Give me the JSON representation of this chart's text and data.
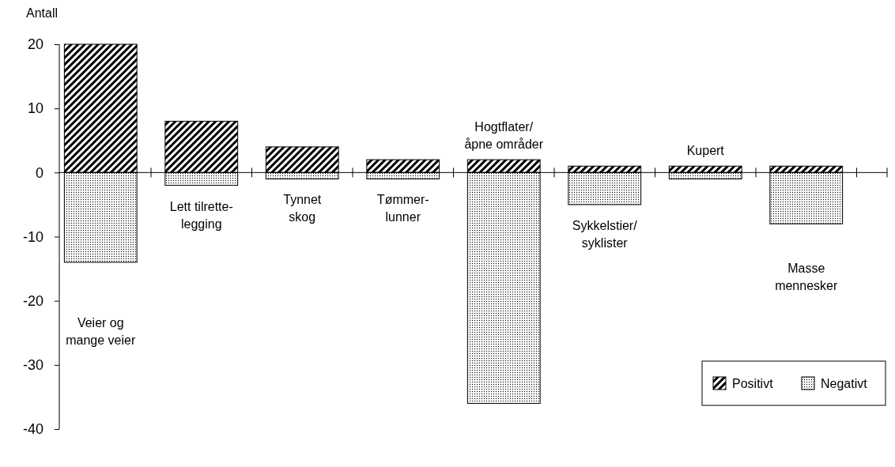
{
  "chart_data": {
    "type": "bar",
    "ylabel": "Antall",
    "categories": [
      "Veier og mange veier",
      "Lett tilrette-legging",
      "Tynnet skog",
      "Tømmer-lunner",
      "Hogtflater/ åpne områder",
      "Sykkelstier/ syklister",
      "Kupert",
      "Masse mennesker"
    ],
    "series": [
      {
        "name": "Positivt",
        "color": "#000000",
        "values": [
          20,
          8,
          4,
          2,
          2,
          1,
          1,
          1
        ]
      },
      {
        "name": "Negativt",
        "color": "#000000",
        "values": [
          -14,
          -2,
          -1,
          -1,
          -36,
          -5,
          -1,
          -8
        ]
      }
    ],
    "stacked": true,
    "ylim": [
      -40,
      20
    ],
    "yticks": [
      -40,
      -30,
      -20,
      -10,
      0,
      10,
      20
    ],
    "legend": "bottom right"
  }
}
